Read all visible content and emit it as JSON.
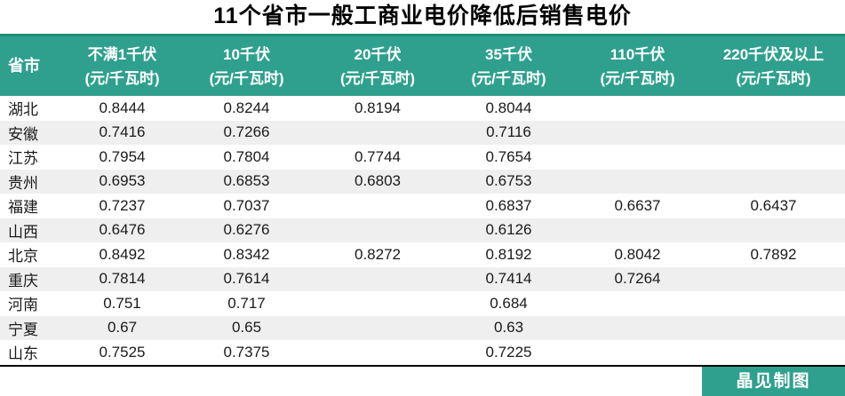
{
  "title": "11个省市一般工商业电价降低后销售电价",
  "table": {
    "columns": [
      {
        "label": "省市",
        "unit": ""
      },
      {
        "label": "不满1千伏",
        "unit": "(元/千瓦时)"
      },
      {
        "label": "10千伏",
        "unit": "(元/千瓦时)"
      },
      {
        "label": "20千伏",
        "unit": "(元/千瓦时)"
      },
      {
        "label": "35千伏",
        "unit": "(元/千瓦时)"
      },
      {
        "label": "110千伏",
        "unit": "(元/千瓦时)"
      },
      {
        "label": "220千伏及以上",
        "unit": "(元/千瓦时)"
      }
    ],
    "rows": [
      {
        "province": "湖北",
        "values": [
          "0.8444",
          "0.8244",
          "0.8194",
          "0.8044",
          "",
          ""
        ]
      },
      {
        "province": "安徽",
        "values": [
          "0.7416",
          "0.7266",
          "",
          "0.7116",
          "",
          ""
        ]
      },
      {
        "province": "江苏",
        "values": [
          "0.7954",
          "0.7804",
          "0.7744",
          "0.7654",
          "",
          ""
        ]
      },
      {
        "province": "贵州",
        "values": [
          "0.6953",
          "0.6853",
          "0.6803",
          "0.6753",
          "",
          ""
        ]
      },
      {
        "province": "福建",
        "values": [
          "0.7237",
          "0.7037",
          "",
          "0.6837",
          "0.6637",
          "0.6437"
        ]
      },
      {
        "province": "山西",
        "values": [
          "0.6476",
          "0.6276",
          "",
          "0.6126",
          "",
          ""
        ]
      },
      {
        "province": "北京",
        "values": [
          "0.8492",
          "0.8342",
          "0.8272",
          "0.8192",
          "0.8042",
          "0.7892"
        ]
      },
      {
        "province": "重庆",
        "values": [
          "0.7814",
          "0.7614",
          "",
          "0.7414",
          "0.7264",
          ""
        ]
      },
      {
        "province": "河南",
        "values": [
          "0.751",
          "0.717",
          "",
          "0.684",
          "",
          ""
        ]
      },
      {
        "province": "宁夏",
        "values": [
          "0.67",
          "0.65",
          "",
          "0.63",
          "",
          ""
        ]
      },
      {
        "province": "山东",
        "values": [
          "0.7525",
          "0.7375",
          "",
          "0.7225",
          "",
          ""
        ]
      }
    ]
  },
  "footer": {
    "credit": "晶见制图"
  },
  "colors": {
    "header_bg": "#2fa08e",
    "header_top_border": "#1f8d78",
    "stripe_bg": "#efefef",
    "credit_bg": "#2fa08e",
    "bottom_rule": "#000000",
    "text": "#1a1a1a"
  },
  "chart_data": {
    "type": "table",
    "title": "11个省市一般工商业电价降低后销售电价",
    "columns": [
      "省市",
      "不满1千伏 (元/千瓦时)",
      "10千伏 (元/千瓦时)",
      "20千伏 (元/千瓦时)",
      "35千伏 (元/千瓦时)",
      "110千伏 (元/千瓦时)",
      "220千伏及以上 (元/千瓦时)"
    ],
    "rows": [
      [
        "湖北",
        0.8444,
        0.8244,
        0.8194,
        0.8044,
        null,
        null
      ],
      [
        "安徽",
        0.7416,
        0.7266,
        null,
        0.7116,
        null,
        null
      ],
      [
        "江苏",
        0.7954,
        0.7804,
        0.7744,
        0.7654,
        null,
        null
      ],
      [
        "贵州",
        0.6953,
        0.6853,
        0.6803,
        0.6753,
        null,
        null
      ],
      [
        "福建",
        0.7237,
        0.7037,
        null,
        0.6837,
        0.6637,
        0.6437
      ],
      [
        "山西",
        0.6476,
        0.6276,
        null,
        0.6126,
        null,
        null
      ],
      [
        "北京",
        0.8492,
        0.8342,
        0.8272,
        0.8192,
        0.8042,
        0.7892
      ],
      [
        "重庆",
        0.7814,
        0.7614,
        null,
        0.7414,
        0.7264,
        null
      ],
      [
        "河南",
        0.751,
        0.717,
        null,
        0.684,
        null,
        null
      ],
      [
        "宁夏",
        0.67,
        0.65,
        null,
        0.63,
        null,
        null
      ],
      [
        "山东",
        0.7525,
        0.7375,
        null,
        0.7225,
        null,
        null
      ]
    ]
  }
}
